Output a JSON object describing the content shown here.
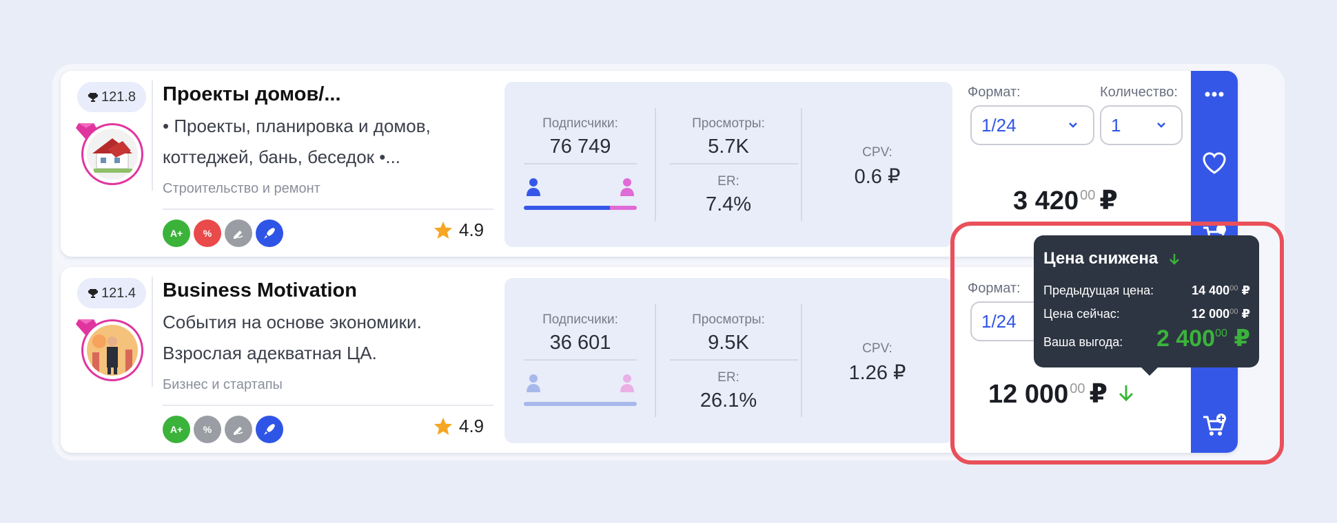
{
  "colors": {
    "accent": "#3557e8",
    "highlight": "#e9505a",
    "price_drop": "#3bb33b",
    "tooltip_bg": "#2d3542"
  },
  "cards": [
    {
      "score": "121.8",
      "title": "Проекты домов/...",
      "description": "• Проекты, планировка и домов, коттеджей, бань, беседок •...",
      "category": "Строительство и ремонт",
      "rating": "4.9",
      "badges": [
        "A+",
        "%",
        "pen-icon",
        "rocket-icon"
      ],
      "stats": {
        "subscribers_label": "Подписчики:",
        "subscribers": "76 749",
        "views_label": "Просмотры:",
        "views": "5.7K",
        "er_label": "ER:",
        "er": "7.4%",
        "cpv_label": "CPV:",
        "cpv": "0.6 ₽",
        "male_share": 0.76
      },
      "format_label": "Формат:",
      "format_value": "1/24",
      "quantity_label": "Количество:",
      "quantity_value": "1",
      "price_main": "3 420",
      "price_cents": "00",
      "currency": "₽"
    },
    {
      "score": "121.4",
      "title": "Business Motivation",
      "description": "События на основе экономики. Взрослая адекватная ЦА.",
      "category": "Бизнес и стартапы",
      "rating": "4.9",
      "badges": [
        "A+",
        "%",
        "pen-icon",
        "rocket-icon"
      ],
      "stats": {
        "subscribers_label": "Подписчики:",
        "subscribers": "36 601",
        "views_label": "Просмотры:",
        "views": "9.5K",
        "er_label": "ER:",
        "er": "26.1%",
        "cpv_label": "CPV:",
        "cpv": "1.26 ₽"
      },
      "format_label": "Формат:",
      "format_value": "1/24",
      "price_main": "12 000",
      "price_cents": "00",
      "currency": "₽"
    }
  ],
  "tooltip": {
    "title": "Цена снижена",
    "prev_label": "Предыдущая цена:",
    "prev_value": "14 400",
    "prev_cents": "00",
    "now_label": "Цена сейчас:",
    "now_value": "12 000",
    "now_cents": "00",
    "save_label": "Ваша выгода:",
    "save_value": "2 400",
    "save_cents": "00",
    "currency": "₽"
  }
}
